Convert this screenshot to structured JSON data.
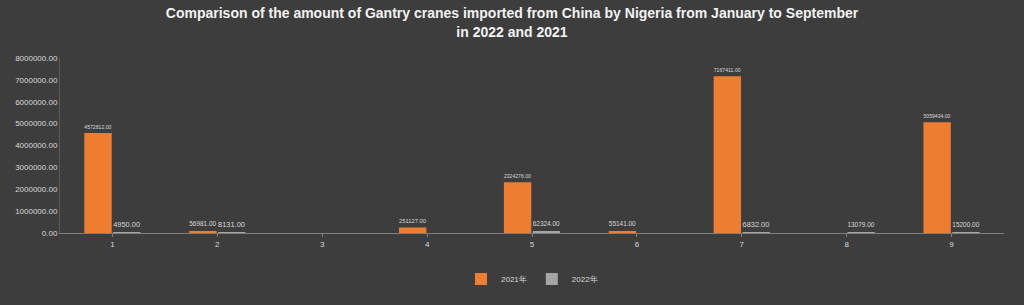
{
  "chart_data": {
    "type": "bar",
    "title": "Comparison of the amount of Gantry cranes imported from China by Nigeria from January to September in 2022 and 2021",
    "categories": [
      "1",
      "2",
      "3",
      "4",
      "5",
      "6",
      "7",
      "8",
      "9"
    ],
    "series": [
      {
        "name": "2021年",
        "color": "#ed7d31",
        "values": [
          4572812,
          56981,
          null,
          251127,
          2324276,
          55141,
          7167411,
          null,
          5059434
        ],
        "value_labels": [
          "4572812.00",
          "56981.00",
          null,
          "251127.00",
          "2324276.00",
          "55141.00",
          "7167411.00",
          null,
          "5059434.00"
        ]
      },
      {
        "name": "2022年",
        "color": "#a5a5a5",
        "values": [
          4950,
          8131,
          null,
          null,
          62324,
          null,
          6832,
          13079,
          15200
        ],
        "value_labels": [
          "4950.00",
          "8131.00",
          null,
          null,
          "62324.00",
          null,
          "6832.00",
          "13079.00",
          "15200.00"
        ]
      }
    ],
    "ylim": [
      0,
      8000000
    ],
    "yticks": [
      {
        "value": 0,
        "label": "0.00"
      },
      {
        "value": 1000000,
        "label": "1000000.00"
      },
      {
        "value": 2000000,
        "label": "2000000.00"
      },
      {
        "value": 3000000,
        "label": "3000000.00"
      },
      {
        "value": 4000000,
        "label": "4000000.00"
      },
      {
        "value": 5000000,
        "label": "5000000.00"
      },
      {
        "value": 6000000,
        "label": "6000000.00"
      },
      {
        "value": 7000000,
        "label": "7000000.00"
      },
      {
        "value": 8000000,
        "label": "8000000.00"
      }
    ],
    "grid": false,
    "legend": "bottom",
    "data_labels": true
  }
}
